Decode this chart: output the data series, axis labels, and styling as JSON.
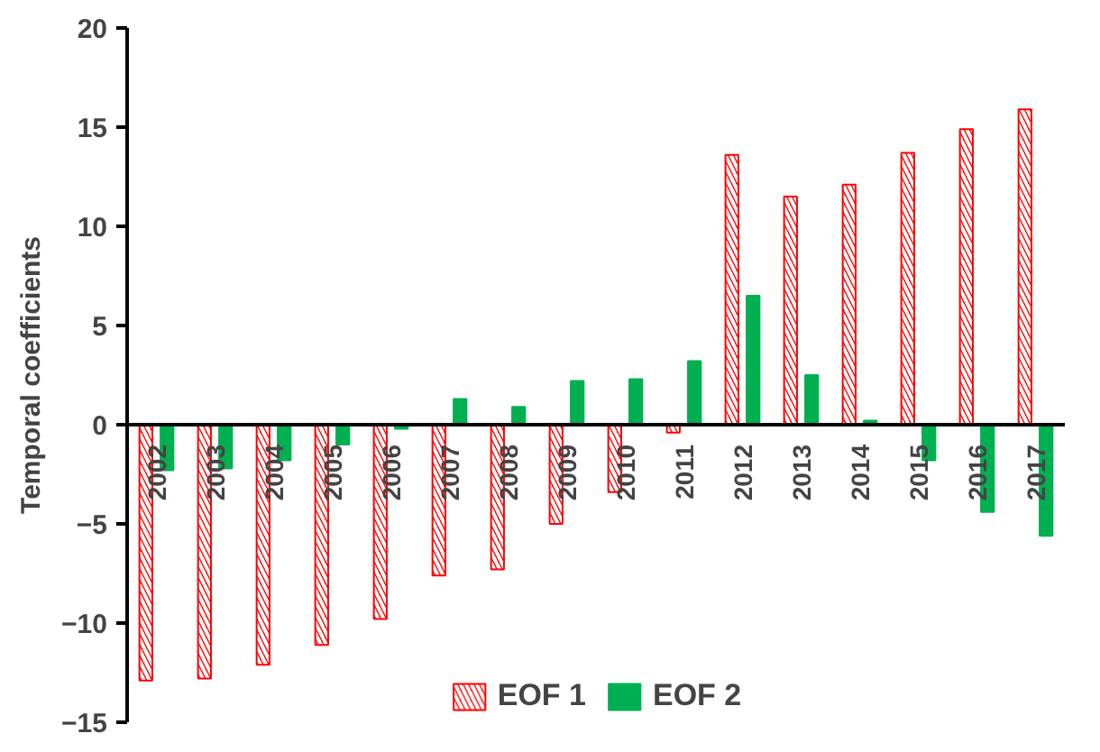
{
  "chart_data": {
    "type": "bar",
    "ylabel": "Temporal coefficients",
    "categories": [
      "2002",
      "2003",
      "2004",
      "2005",
      "2006",
      "2007",
      "2008",
      "2009",
      "2010",
      "2011",
      "2012",
      "2013",
      "2014",
      "2015",
      "2016",
      "2017"
    ],
    "series": [
      {
        "name": "EOF 1",
        "color": "#ff0000",
        "values": [
          -12.9,
          -12.8,
          -12.1,
          -11.1,
          -9.8,
          -7.6,
          -7.3,
          -5.0,
          -3.4,
          -0.4,
          13.6,
          11.5,
          12.1,
          13.7,
          14.9,
          15.9
        ]
      },
      {
        "name": "EOF 2",
        "color": "#00b050",
        "values": [
          -2.3,
          -2.2,
          -1.8,
          -1.0,
          -0.2,
          1.3,
          0.9,
          2.2,
          2.3,
          3.2,
          6.5,
          2.5,
          0.2,
          -1.8,
          -4.4,
          -5.6
        ]
      }
    ],
    "ylim": [
      -15,
      20
    ],
    "yticks": [
      -15,
      -10,
      -5,
      0,
      5,
      10,
      15,
      20
    ],
    "grid": false,
    "legend": "bottom"
  }
}
